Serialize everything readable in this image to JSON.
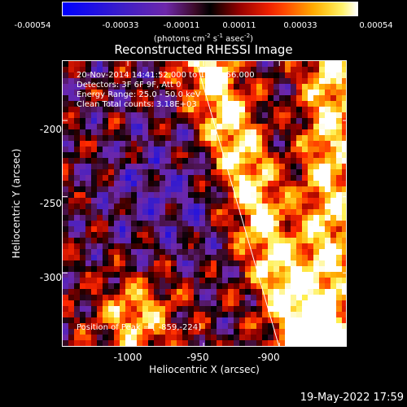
{
  "colorbar": {
    "ticks": [
      "-0.00054",
      "-0.00033",
      "-0.00011",
      "0.00011",
      "0.00033",
      "0.00054"
    ],
    "units_prefix": "(photons cm",
    "units_exp1": "-2",
    "units_mid": " s",
    "units_exp2": "-1",
    "units_mid2": " asec",
    "units_exp3": "-2",
    "units_suffix": ")",
    "range": [
      -0.00054,
      0.00054
    ]
  },
  "title": "Reconstructed RHESSI Image",
  "annotation": {
    "line1": "20-Nov-2014 14:41:52.000 to 14:46:56.000",
    "line2": "Detectors: 3F 6F 9F, Att 0",
    "line3": "Energy Range: 25.0 - 50.0 keV",
    "line4": "Clean     Total counts: 3.18E+03"
  },
  "peak_label": "Position of Peak = [ -859,-224]",
  "footer_date": "19-May-2022 17:59",
  "chart_data": {
    "type": "heatmap",
    "title": "Reconstructed RHESSI Image",
    "xlabel": "Heliocentric X (arcsec)",
    "ylabel": "Heliocentric Y (arcsec)",
    "xlim": [
      -1043,
      -855
    ],
    "ylim": [
      -349,
      -161
    ],
    "xticks": [
      -1000,
      -950,
      -900
    ],
    "xtick_labels": [
      "-1000",
      "-950",
      "-900"
    ],
    "yticks": [
      -200,
      -250,
      -300
    ],
    "ytick_labels": [
      "-200",
      "-250",
      "-300"
    ],
    "limb_line": {
      "x1": -955,
      "y1": -161,
      "x2": -900,
      "y2": -349
    },
    "peak": [
      -859,
      -224
    ],
    "colormap": "rhessi",
    "clim": [
      -0.00054,
      0.00054
    ]
  },
  "colors": {
    "background": "#000000",
    "foreground": "#ffffff"
  }
}
